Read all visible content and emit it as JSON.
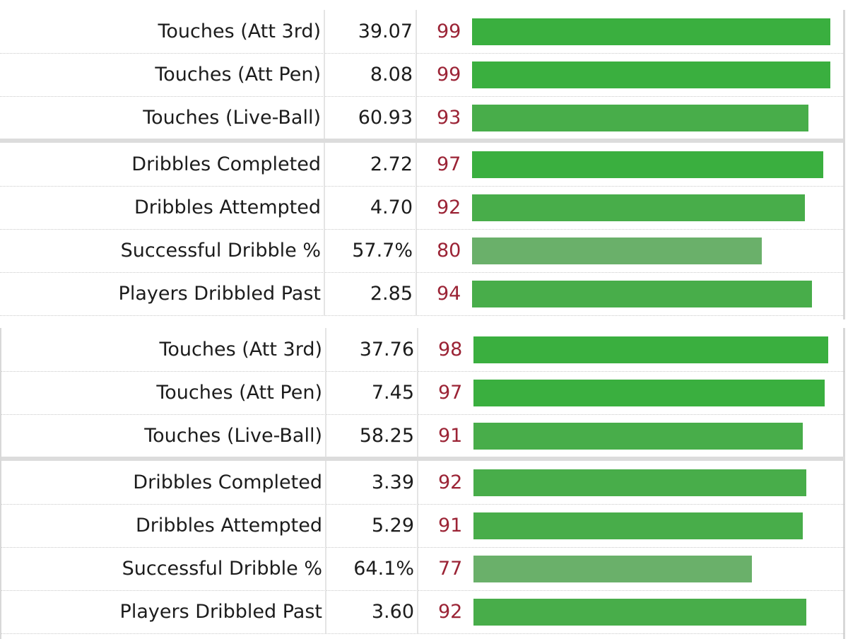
{
  "colors": {
    "bar_high": "#3aaf3f",
    "bar_mid": "#48ad4a",
    "bar_low": "#6ab06a",
    "percentile_text": "#9b2335"
  },
  "blocks": [
    {
      "rows": [
        {
          "label": "Touches (Att 3rd)",
          "value": "39.07",
          "percentile": "99",
          "bar_fraction": 0.99
        },
        {
          "label": "Touches (Att Pen)",
          "value": "8.08",
          "percentile": "99",
          "bar_fraction": 0.99
        },
        {
          "label": "Touches (Live-Ball)",
          "value": "60.93",
          "percentile": "93",
          "bar_fraction": 0.93
        },
        {
          "label": "Dribbles Completed",
          "value": "2.72",
          "percentile": "97",
          "bar_fraction": 0.97,
          "group_start": true
        },
        {
          "label": "Dribbles Attempted",
          "value": "4.70",
          "percentile": "92",
          "bar_fraction": 0.92
        },
        {
          "label": "Successful Dribble %",
          "value": "57.7%",
          "percentile": "80",
          "bar_fraction": 0.8
        },
        {
          "label": "Players Dribbled Past",
          "value": "2.85",
          "percentile": "94",
          "bar_fraction": 0.94
        }
      ]
    },
    {
      "rows": [
        {
          "label": "Touches (Att 3rd)",
          "value": "37.76",
          "percentile": "98",
          "bar_fraction": 0.98
        },
        {
          "label": "Touches (Att Pen)",
          "value": "7.45",
          "percentile": "97",
          "bar_fraction": 0.97
        },
        {
          "label": "Touches (Live-Ball)",
          "value": "58.25",
          "percentile": "91",
          "bar_fraction": 0.91
        },
        {
          "label": "Dribbles Completed",
          "value": "3.39",
          "percentile": "92",
          "bar_fraction": 0.92,
          "group_start": true
        },
        {
          "label": "Dribbles Attempted",
          "value": "5.29",
          "percentile": "91",
          "bar_fraction": 0.91
        },
        {
          "label": "Successful Dribble %",
          "value": "64.1%",
          "percentile": "77",
          "bar_fraction": 0.77
        },
        {
          "label": "Players Dribbled Past",
          "value": "3.60",
          "percentile": "92",
          "bar_fraction": 0.92
        }
      ]
    }
  ]
}
